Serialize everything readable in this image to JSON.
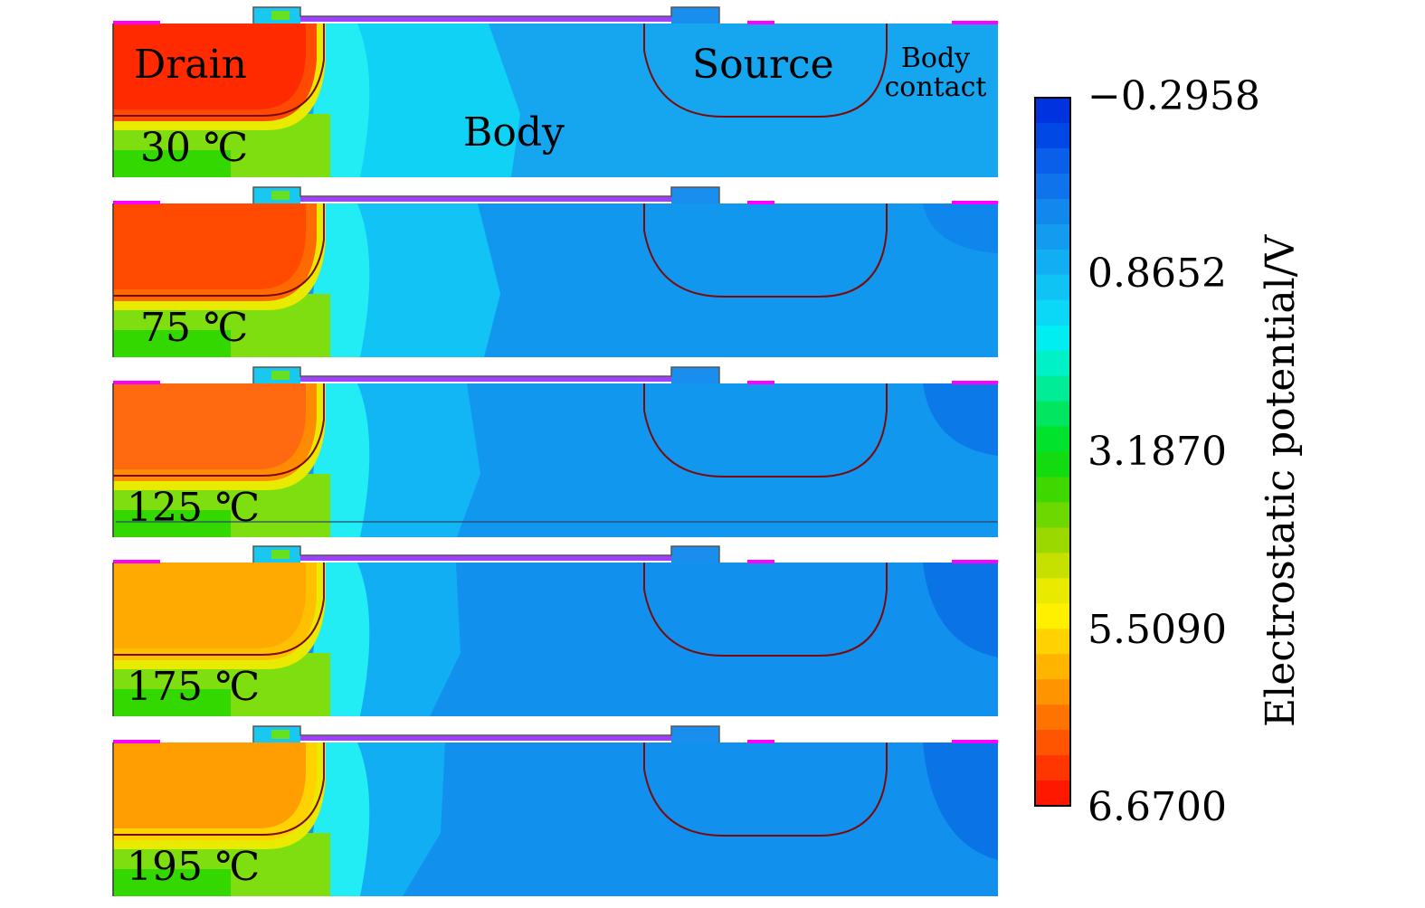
{
  "labels": {
    "drain": "Drain",
    "source": "Source",
    "body": "Body",
    "body_contact_line1": "Body",
    "body_contact_line2": "contact"
  },
  "panels": [
    {
      "temperature": "30 ℃",
      "drain_color": "#ff2a00",
      "mid_color": "#0fd2f5",
      "right_color": "#15a6ef",
      "corner_color": "#15a6ef",
      "drain_rim": "#ff4a00"
    },
    {
      "temperature": "75 ℃",
      "drain_color": "#ff4a00",
      "mid_color": "#12c4f5",
      "right_color": "#1197ee",
      "corner_color": "#0f86ec",
      "drain_rim": "#ff6a00"
    },
    {
      "temperature": "125 ℃",
      "drain_color": "#ff6a10",
      "mid_color": "#12b6f4",
      "right_color": "#1197ee",
      "corner_color": "#0b7ae8",
      "drain_rim": "#ff8c00"
    },
    {
      "temperature": "175 ℃",
      "drain_color": "#ffaa00",
      "mid_color": "#12aef4",
      "right_color": "#1190ed",
      "corner_color": "#0a74e6",
      "drain_rim": "#ffc000"
    },
    {
      "temperature": "195 ℃",
      "drain_color": "#ff9e00",
      "mid_color": "#12aef4",
      "right_color": "#1190ed",
      "corner_color": "#0a74e6",
      "drain_rim": "#ffd200"
    }
  ],
  "colorbar": {
    "title": "Electrostatic potential/V",
    "ticks": [
      "−0.2958",
      "0.8652",
      "3.1870",
      "5.5090",
      "6.6700"
    ],
    "colors_top_to_bottom": [
      "#0033e0",
      "#0048e6",
      "#0a5fea",
      "#0f74ec",
      "#1188ee",
      "#139bf0",
      "#12aef3",
      "#10c3f5",
      "#0bd7f6",
      "#00eef2",
      "#00f0c8",
      "#00ec96",
      "#00e660",
      "#00e22c",
      "#12dc10",
      "#3ed800",
      "#6cd800",
      "#9ad800",
      "#c6e000",
      "#eaea00",
      "#fff000",
      "#ffd200",
      "#ffb400",
      "#ff9400",
      "#ff7400",
      "#ff5400",
      "#ff3600",
      "#ff1800"
    ]
  },
  "accent_colors": {
    "gate": "#a040ff",
    "contact": "#ff00ff",
    "junction": "#7a0a0a"
  }
}
